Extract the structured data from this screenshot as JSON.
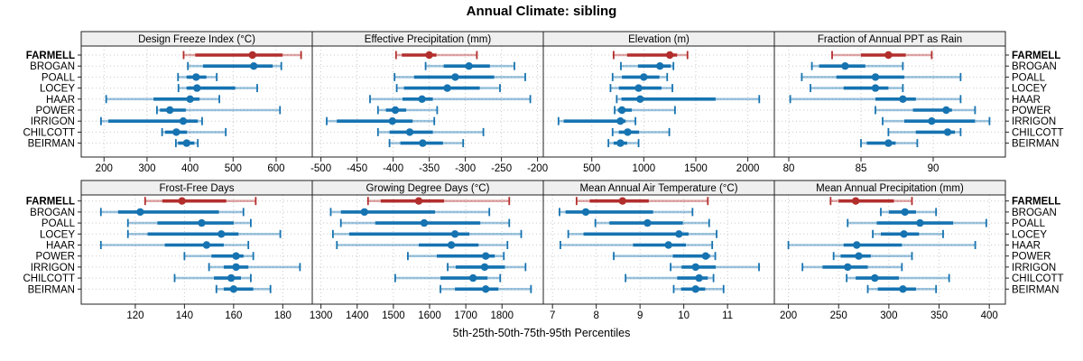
{
  "title": "Annual Climate: sibling",
  "xlabel": "5th-25th-50th-75th-95th Percentiles",
  "stations": [
    "FARMELL",
    "BROGAN",
    "POALL",
    "LOCEY",
    "HAAR",
    "POWER",
    "IRRIGON",
    "CHILCOTT",
    "BEIRMAN"
  ],
  "highlight_station": "FARMELL",
  "percentile_labels": [
    "5th",
    "25th",
    "50th",
    "75th",
    "95th"
  ],
  "colors": {
    "highlight": "#B22E2C",
    "normal": "#1673B1",
    "grid": "#C9C9C9",
    "strip_bg": "#EFEFEF",
    "border": "#222222",
    "text": "#000000"
  },
  "chart_data": [
    {
      "type": "dotplot-intervals",
      "title": "Design Freeze Index (°C)",
      "row": 0,
      "col": 0,
      "xlim": [
        147,
        684
      ],
      "ticks": [
        200,
        300,
        400,
        500,
        600
      ],
      "values": {
        "FARMELL": [
          385,
          412,
          545,
          615,
          658
        ],
        "BROGAN": [
          395,
          430,
          548,
          592,
          612
        ],
        "POALL": [
          372,
          392,
          414,
          438,
          462
        ],
        "LOCEY": [
          373,
          392,
          416,
          505,
          556
        ],
        "HAAR": [
          205,
          315,
          400,
          422,
          468
        ],
        "POWER": [
          323,
          330,
          353,
          390,
          609
        ],
        "IRRIGON": [
          193,
          210,
          384,
          418,
          428
        ],
        "CHILCOTT": [
          335,
          342,
          368,
          393,
          483
        ],
        "BEIRMAN": [
          367,
          372,
          392,
          410,
          418
        ]
      }
    },
    {
      "type": "dotplot-intervals",
      "title": "Effective Precipitation (mm)",
      "row": 0,
      "col": 1,
      "xlim": [
        -512,
        -192
      ],
      "ticks": [
        -500,
        -450,
        -400,
        -350,
        -300,
        -250,
        -200
      ],
      "values": {
        "FARMELL": [
          -396,
          -388,
          -350,
          -340,
          -284
        ],
        "BROGAN": [
          -355,
          -330,
          -295,
          -266,
          -232
        ],
        "POALL": [
          -398,
          -371,
          -314,
          -260,
          -217
        ],
        "LOCEY": [
          -395,
          -385,
          -325,
          -280,
          -252
        ],
        "HAAR": [
          -432,
          -387,
          -360,
          -345,
          -210
        ],
        "POWER": [
          -421,
          -410,
          -397,
          -382,
          -339
        ],
        "IRRIGON": [
          -492,
          -478,
          -401,
          -373,
          -343
        ],
        "CHILCOTT": [
          -421,
          -405,
          -377,
          -345,
          -275
        ],
        "BEIRMAN": [
          -405,
          -390,
          -359,
          -331,
          -303
        ]
      }
    },
    {
      "type": "dotplot-intervals",
      "title": "Elevation (m)",
      "row": 0,
      "col": 2,
      "xlim": [
        34,
        2255
      ],
      "ticks": [
        500,
        1000,
        1500,
        2000
      ],
      "values": {
        "FARMELL": [
          710,
          840,
          1250,
          1320,
          1420
        ],
        "BROGAN": [
          780,
          945,
          1155,
          1260,
          1285
        ],
        "POALL": [
          700,
          790,
          1000,
          1150,
          1225
        ],
        "LOCEY": [
          680,
          760,
          950,
          1170,
          1275
        ],
        "HAAR": [
          740,
          785,
          965,
          1690,
          2110
        ],
        "POWER": [
          720,
          750,
          790,
          885,
          1300
        ],
        "IRRIGON": [
          180,
          230,
          775,
          825,
          920
        ],
        "CHILCOTT": [
          700,
          760,
          845,
          955,
          1245
        ],
        "BEIRMAN": [
          660,
          710,
          775,
          840,
          950
        ]
      }
    },
    {
      "type": "dotplot-intervals",
      "title": "Fraction of Annual PPT as Rain",
      "row": 0,
      "col": 3,
      "xlim": [
        79,
        95
      ],
      "ticks": [
        80,
        85,
        90
      ],
      "values": {
        "FARMELL": [
          83.0,
          85.0,
          86.9,
          88.1,
          89.9
        ],
        "BROGAN": [
          81.6,
          82.1,
          83.9,
          85.3,
          87.9
        ],
        "POALL": [
          80.9,
          83.3,
          86.0,
          88.0,
          91.9
        ],
        "LOCEY": [
          81.5,
          83.8,
          86.0,
          86.9,
          87.9
        ],
        "HAAR": [
          80.1,
          86.0,
          87.9,
          88.8,
          91.9
        ],
        "POWER": [
          86.0,
          88.6,
          90.9,
          91.3,
          92.9
        ],
        "IRRIGON": [
          86.5,
          88.0,
          89.9,
          92.9,
          93.9
        ],
        "CHILCOTT": [
          86.9,
          88.8,
          91.0,
          91.5,
          91.9
        ],
        "BEIRMAN": [
          85.0,
          85.4,
          86.9,
          87.4,
          88.9
        ]
      }
    },
    {
      "type": "dotplot-intervals",
      "title": "Frost-Free Days",
      "row": 1,
      "col": 0,
      "xlim": [
        98,
        192
      ],
      "ticks": [
        120,
        140,
        160,
        180
      ],
      "values": {
        "FARMELL": [
          124,
          131,
          139,
          157,
          169
        ],
        "BROGAN": [
          106,
          113,
          122,
          154,
          164
        ],
        "POALL": [
          117,
          129,
          147,
          160,
          167
        ],
        "LOCEY": [
          117,
          125,
          155,
          162,
          179
        ],
        "HAAR": [
          106,
          132,
          149,
          156,
          166
        ],
        "POWER": [
          140,
          151,
          161,
          164,
          168
        ],
        "IRRIGON": [
          150,
          156,
          161,
          166,
          187
        ],
        "CHILCOTT": [
          136,
          152,
          159,
          163,
          167
        ],
        "BEIRMAN": [
          153,
          156,
          160,
          168,
          175
        ]
      }
    },
    {
      "type": "dotplot-intervals",
      "title": "Growing Degree Days (°C)",
      "row": 1,
      "col": 1,
      "xlim": [
        1276,
        1914
      ],
      "ticks": [
        1300,
        1400,
        1500,
        1600,
        1700,
        1800
      ],
      "values": {
        "FARMELL": [
          1430,
          1465,
          1570,
          1640,
          1820
        ],
        "BROGAN": [
          1327,
          1355,
          1420,
          1615,
          1765
        ],
        "POALL": [
          1355,
          1450,
          1585,
          1740,
          1820
        ],
        "LOCEY": [
          1333,
          1378,
          1670,
          1710,
          1853
        ],
        "HAAR": [
          1344,
          1570,
          1660,
          1735,
          1815
        ],
        "POWER": [
          1540,
          1620,
          1755,
          1780,
          1805
        ],
        "IRRIGON": [
          1650,
          1672,
          1752,
          1808,
          1865
        ],
        "CHILCOTT": [
          1505,
          1630,
          1720,
          1760,
          1795
        ],
        "BEIRMAN": [
          1630,
          1670,
          1755,
          1790,
          1880
        ]
      }
    },
    {
      "type": "dotplot-intervals",
      "title": "Mean Annual Air Temperature (°C)",
      "row": 1,
      "col": 2,
      "xlim": [
        6.79,
        12.07
      ],
      "ticks": [
        7,
        8,
        9,
        10,
        11
      ],
      "values": {
        "FARMELL": [
          7.55,
          7.85,
          8.6,
          9.2,
          10.55
        ],
        "BROGAN": [
          7.16,
          7.3,
          7.76,
          9.3,
          10.2
        ],
        "POALL": [
          7.98,
          8.3,
          9.17,
          9.98,
          10.58
        ],
        "LOCEY": [
          7.36,
          7.71,
          9.89,
          10.11,
          10.75
        ],
        "HAAR": [
          7.18,
          8.84,
          9.65,
          10.05,
          10.65
        ],
        "POWER": [
          8.4,
          9.75,
          10.5,
          10.6,
          10.72
        ],
        "IRRIGON": [
          9.7,
          9.95,
          10.27,
          10.73,
          11.72
        ],
        "CHILCOTT": [
          8.67,
          9.85,
          10.35,
          10.55,
          10.68
        ],
        "BEIRMAN": [
          9.77,
          9.94,
          10.27,
          10.49,
          10.91
        ]
      }
    },
    {
      "type": "dotplot-intervals",
      "title": "Mean Annual Precipitation (mm)",
      "row": 1,
      "col": 3,
      "xlim": [
        186,
        416
      ],
      "ticks": [
        200,
        250,
        300,
        350,
        400
      ],
      "values": {
        "FARMELL": [
          242,
          250,
          267,
          305,
          323
        ],
        "BROGAN": [
          292,
          300,
          316,
          327,
          347
        ],
        "POALL": [
          259,
          288,
          331,
          364,
          397
        ],
        "LOCEY": [
          284,
          292,
          315,
          330,
          354
        ],
        "HAAR": [
          200,
          255,
          268,
          313,
          386
        ],
        "POWER": [
          245,
          252,
          270,
          282,
          323
        ],
        "IRRIGON": [
          214,
          234,
          259,
          279,
          313
        ],
        "CHILCOTT": [
          258,
          267,
          286,
          310,
          360
        ],
        "BEIRMAN": [
          279,
          289,
          314,
          327,
          347
        ]
      }
    }
  ]
}
